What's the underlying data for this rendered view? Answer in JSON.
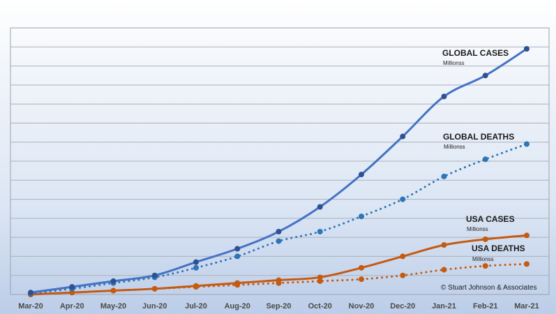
{
  "chart_data": {
    "type": "line",
    "title": "",
    "xlabel": "",
    "ylabel": "",
    "categories": [
      "Mar-20",
      "Apr-20",
      "May-20",
      "Jun-20",
      "Jul-20",
      "Aug-20",
      "Sep-20",
      "Oct-20",
      "Nov-20",
      "Dec-20",
      "Jan-21",
      "Feb-21",
      "Mar-21"
    ],
    "ylim": [
      0,
      140
    ],
    "grid": true,
    "legend": "none",
    "series": [
      {
        "key": "global_cases",
        "color": "#4472c4",
        "marker": "#2f528f",
        "style": "solid",
        "values": [
          1,
          4,
          7,
          10,
          17,
          24,
          33,
          46,
          63,
          83,
          104,
          115,
          129
        ]
      },
      {
        "key": "global_deaths",
        "color": "#2e75b6",
        "marker": "#2e75b6",
        "style": "dotted",
        "values": [
          0.5,
          3,
          6,
          9,
          14,
          20,
          28,
          33,
          41,
          50,
          62,
          71,
          79
        ]
      },
      {
        "key": "usa_cases",
        "color": "#c55a11",
        "marker": "#c55a11",
        "style": "solid",
        "values": [
          0,
          1,
          2,
          3,
          4.5,
          6,
          7.5,
          9,
          14,
          20,
          26,
          29,
          31
        ]
      },
      {
        "key": "usa_deaths",
        "color": "#c55a11",
        "marker": "#c55a11",
        "style": "dotted",
        "values": [
          0,
          1,
          2,
          3,
          4,
          5,
          6,
          7,
          8,
          10,
          13,
          15,
          16
        ]
      }
    ],
    "annotations": [
      {
        "key": "global_cases",
        "title": "GLOBAL CASES",
        "subtitle": "Millionss"
      },
      {
        "key": "global_deaths",
        "title": "GLOBAL DEATHS",
        "subtitle": "Millionss"
      },
      {
        "key": "usa_cases",
        "title": "USA CASES",
        "subtitle": "Millionss"
      },
      {
        "key": "usa_deaths",
        "title": "USA DEATHS",
        "subtitle": "Millionss"
      }
    ],
    "credit": "© Stuart Johnson & Associates"
  }
}
